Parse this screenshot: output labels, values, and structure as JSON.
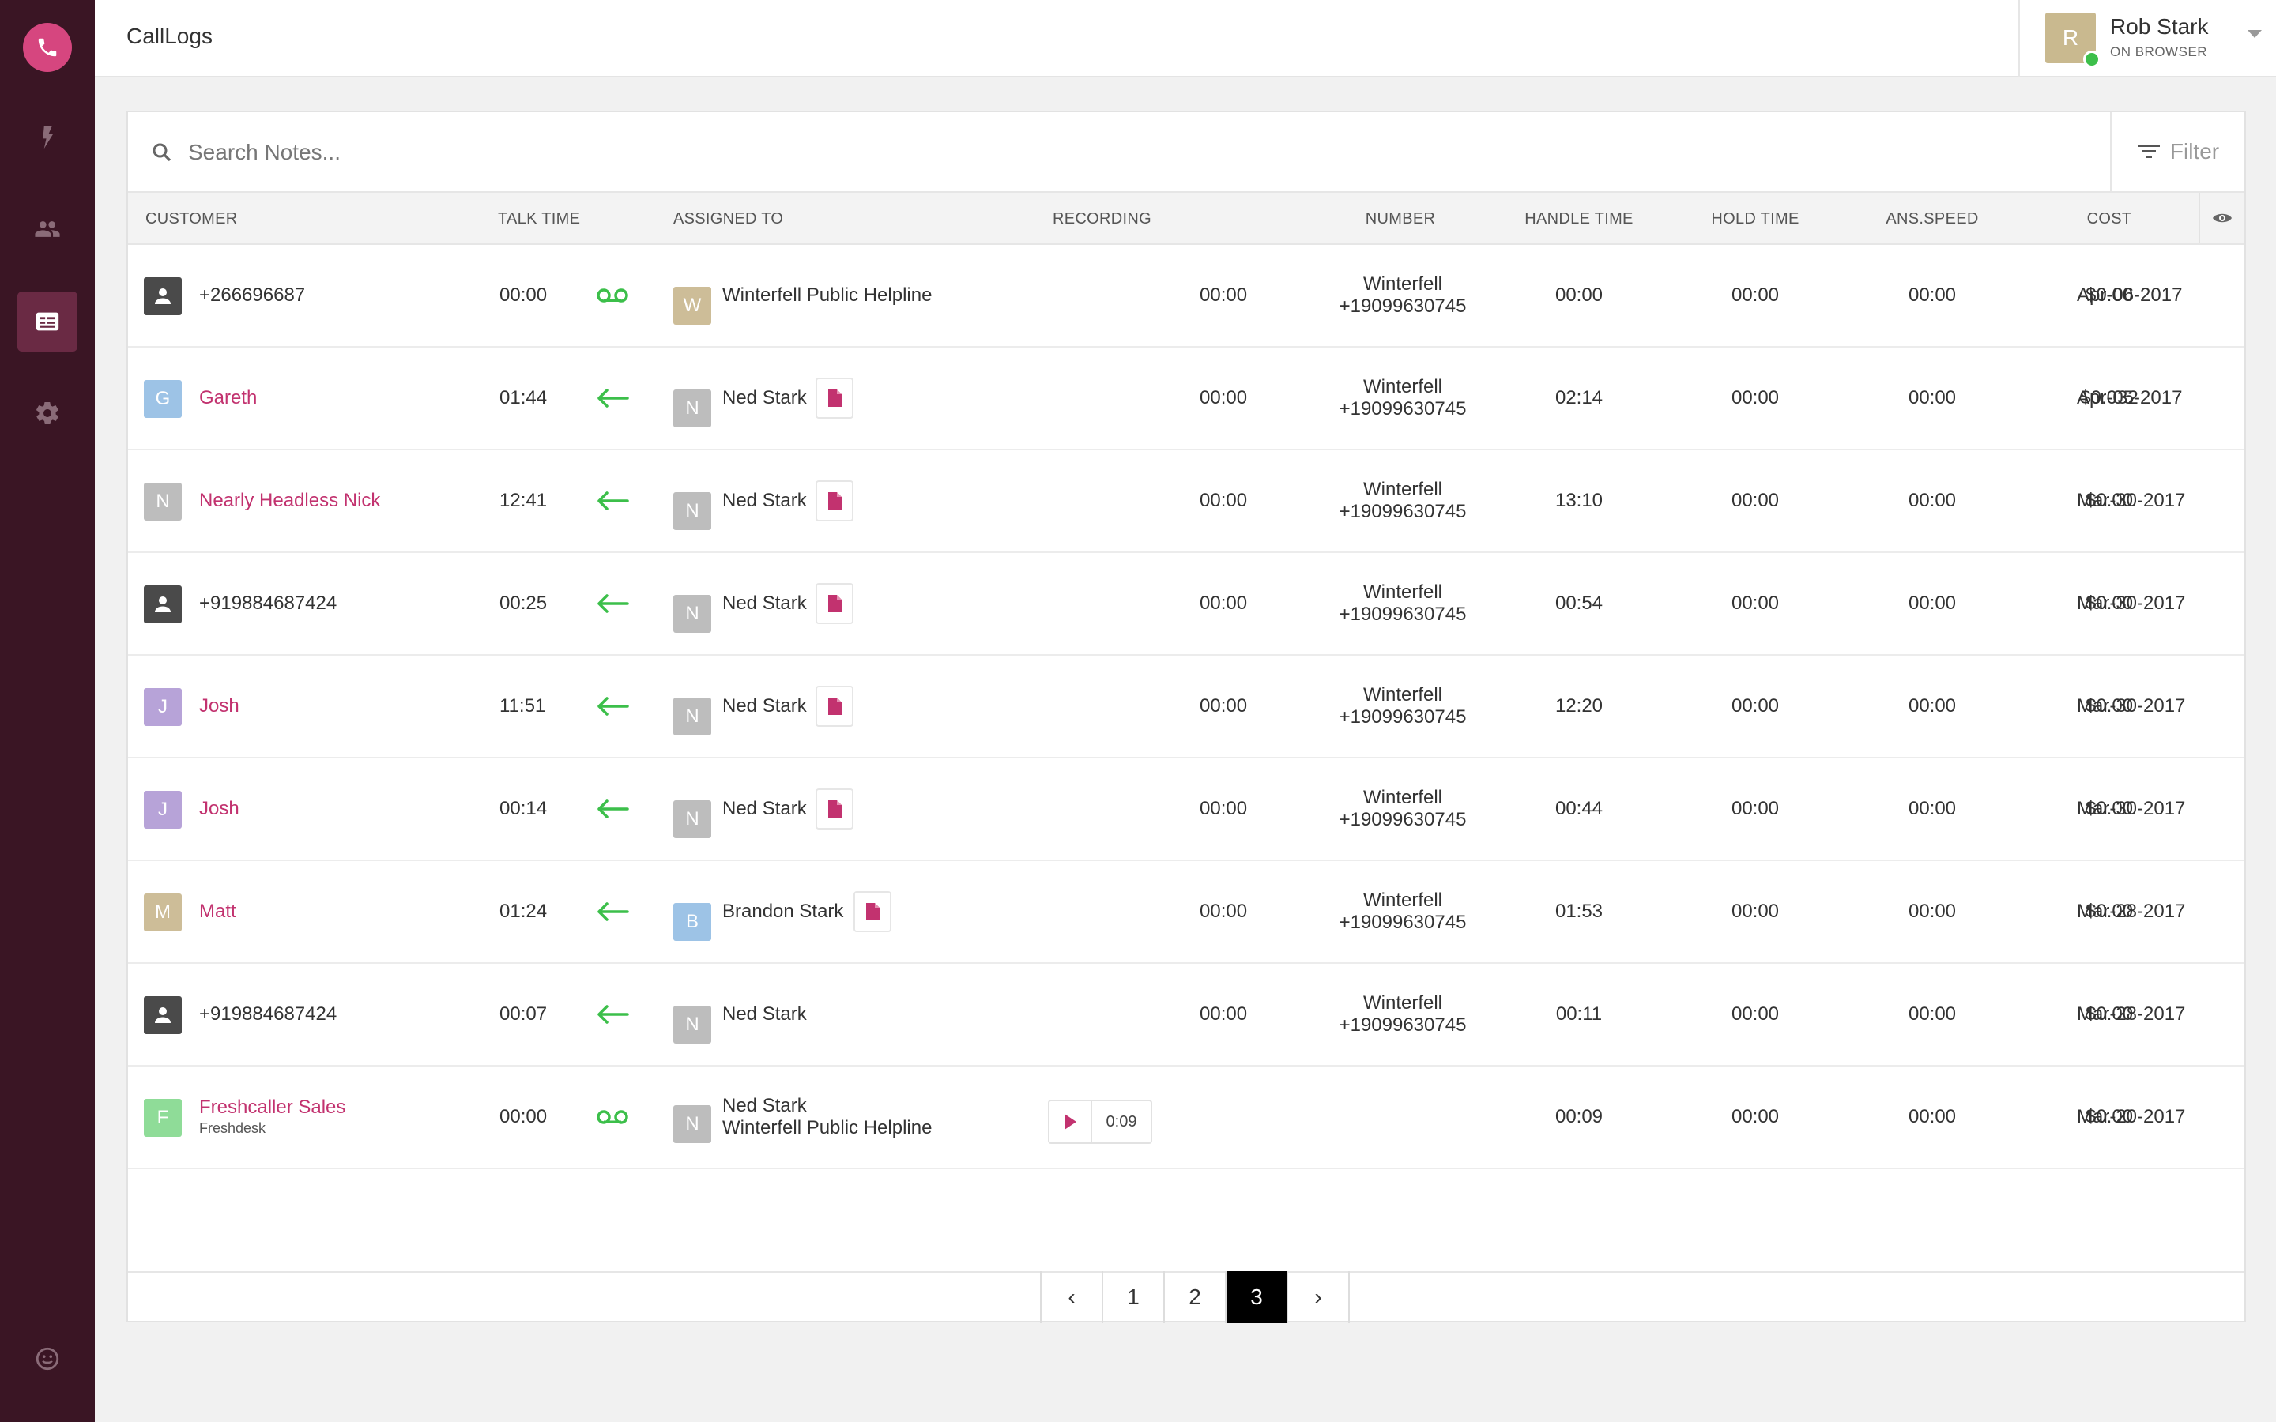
{
  "app": {
    "title": "CallLogs"
  },
  "user": {
    "name": "Rob Stark",
    "status": "ON BROWSER",
    "initial": "R"
  },
  "search": {
    "placeholder": "Search Notes..."
  },
  "filter": {
    "label": "Filter"
  },
  "columns": {
    "customer": "CUSTOMER",
    "talk_time": "TALK TIME",
    "assigned_to": "ASSIGNED TO",
    "recording": "RECORDING",
    "number": "NUMBER",
    "handle_time": "HANDLE TIME",
    "hold_time": "HOLD TIME",
    "ans_speed": "ANS.SPEED",
    "cost": "COST"
  },
  "rows": [
    {
      "customer": "+266696687",
      "talk": "00:00",
      "type": "voicemail",
      "assignee_initial": "W",
      "assignee": "Winterfell Public Helpline",
      "recording": "00:00",
      "number_name": "Winterfell",
      "number": "+19099630745",
      "handle": "00:00",
      "hold": "00:00",
      "ans": "00:00",
      "cost": "$0.00",
      "date": "Apr-06-2017"
    },
    {
      "customer_initial": "G",
      "customer": "Gareth",
      "talk": "01:44",
      "type": "incoming",
      "assignee_initial": "N",
      "assignee": "Ned Stark",
      "recording": "00:00",
      "number_name": "Winterfell",
      "number": "+19099630745",
      "handle": "02:14",
      "hold": "00:00",
      "ans": "00:00",
      "cost": "$0.032",
      "date": "Apr-05-2017"
    },
    {
      "customer_initial": "N",
      "customer": "Nearly Headless Nick",
      "talk": "12:41",
      "type": "incoming",
      "assignee_initial": "N",
      "assignee": "Ned Stark",
      "recording": "00:00",
      "number_name": "Winterfell",
      "number": "+19099630745",
      "handle": "13:10",
      "hold": "00:00",
      "ans": "00:00",
      "cost": "$0.00",
      "date": "Mar-30-2017"
    },
    {
      "customer": "+919884687424",
      "talk": "00:25",
      "type": "incoming",
      "assignee_initial": "N",
      "assignee": "Ned Stark",
      "recording": "00:00",
      "number_name": "Winterfell",
      "number": "+19099630745",
      "handle": "00:54",
      "hold": "00:00",
      "ans": "00:00",
      "cost": "$0.00",
      "date": "Mar-30-2017"
    },
    {
      "customer_initial": "J",
      "customer": "Josh",
      "talk": "11:51",
      "type": "incoming",
      "assignee_initial": "N",
      "assignee": "Ned Stark",
      "recording": "00:00",
      "number_name": "Winterfell",
      "number": "+19099630745",
      "handle": "12:20",
      "hold": "00:00",
      "ans": "00:00",
      "cost": "$0.00",
      "date": "Mar-30-2017"
    },
    {
      "customer_initial": "J",
      "customer": "Josh",
      "talk": "00:14",
      "type": "incoming",
      "assignee_initial": "N",
      "assignee": "Ned Stark",
      "recording": "00:00",
      "number_name": "Winterfell",
      "number": "+19099630745",
      "handle": "00:44",
      "hold": "00:00",
      "ans": "00:00",
      "cost": "$0.00",
      "date": "Mar-30-2017"
    },
    {
      "customer_initial": "M",
      "customer": "Matt",
      "talk": "01:24",
      "type": "incoming",
      "assignee_initial": "B",
      "assignee": "Brandon Stark",
      "recording": "00:00",
      "number_name": "Winterfell",
      "number": "+19099630745",
      "handle": "01:53",
      "hold": "00:00",
      "ans": "00:00",
      "cost": "$0.00",
      "date": "Mar-28-2017"
    },
    {
      "customer": "+919884687424",
      "talk": "00:07",
      "type": "incoming",
      "assignee_initial": "N",
      "assignee": "Ned Stark",
      "recording": "00:00",
      "number_name": "Winterfell",
      "number": "+19099630745",
      "handle": "00:11",
      "hold": "00:00",
      "ans": "00:00",
      "cost": "$0.00",
      "date": "Mar-28-2017"
    },
    {
      "customer_initial": "F",
      "customer": "Freshcaller Sales",
      "customer_sub": "Freshdesk",
      "talk": "00:00",
      "type": "voicemail",
      "assignee_initial": "N",
      "assignee": "Ned Stark",
      "assignee_sub": "Winterfell Public Helpline",
      "recording_duration": "0:09",
      "handle": "00:09",
      "hold": "00:00",
      "ans": "00:00",
      "cost": "$0.00",
      "date": "Mar-20-2017"
    }
  ],
  "pagination": {
    "prev": "‹",
    "pages": [
      "1",
      "2",
      "3"
    ],
    "current": "3",
    "next": "›"
  },
  "colors": {
    "sidebar": "#3a1524",
    "accent": "#c2326f",
    "logo": "#d6467f",
    "incoming_arrow": "#3cbf4a",
    "online": "#3cbf4a"
  },
  "icons": {
    "logo": "phone-icon",
    "nav": [
      "bolt-icon",
      "people-icon",
      "calllogs-icon",
      "gear-icon"
    ],
    "bottom": "chat-smiley-icon"
  }
}
